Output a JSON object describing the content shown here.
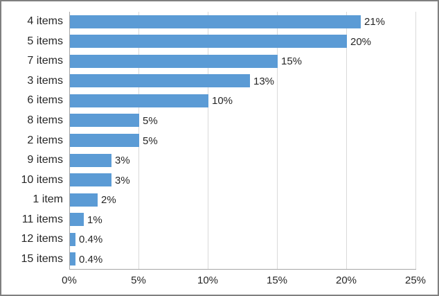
{
  "chart_data": {
    "type": "bar",
    "orientation": "horizontal",
    "title": "",
    "xlabel": "",
    "ylabel": "",
    "categories": [
      "4 items",
      "5 items",
      "7 items",
      "3 items",
      "6 items",
      "8 items",
      "2 items",
      "9 items",
      "10 items",
      "1 item",
      "11 items",
      "12 items",
      "15 items"
    ],
    "values": [
      21,
      20,
      15,
      13,
      10,
      5,
      5,
      3,
      3,
      2,
      1,
      0.4,
      0.4
    ],
    "value_labels": [
      "21%",
      "20%",
      "15%",
      "13%",
      "10%",
      "5%",
      "5%",
      "3%",
      "3%",
      "2%",
      "1%",
      "0.4%",
      "0.4%"
    ],
    "x_ticks": [
      {
        "value": 0,
        "label": "0%"
      },
      {
        "value": 5,
        "label": "5%"
      },
      {
        "value": 10,
        "label": "10%"
      },
      {
        "value": 15,
        "label": "15%"
      },
      {
        "value": 20,
        "label": "20%"
      },
      {
        "value": 25,
        "label": "25%"
      }
    ],
    "xlim": [
      0,
      25
    ],
    "grid": true,
    "legend": false,
    "colors": {
      "bar": "#5B9BD5",
      "gridline": "#D9D9D9",
      "axis_line": "#A6A6A6",
      "label_text": "#262626",
      "chart_border": "#808080",
      "background": "#FFFFFF"
    }
  }
}
